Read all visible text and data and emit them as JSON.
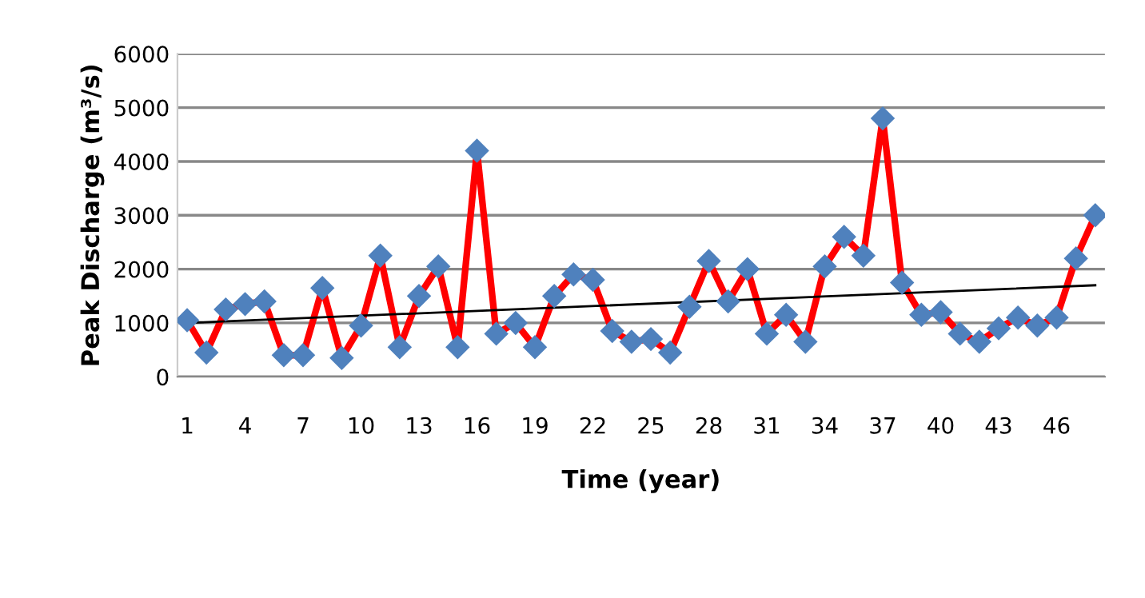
{
  "chart_data": {
    "type": "line",
    "xlabel": "Time (year)",
    "ylabel": "Peak Discharge (m³/s)",
    "categories": [
      "1",
      null,
      null,
      "4",
      null,
      null,
      "7",
      null,
      null,
      "10",
      null,
      null,
      "13",
      null,
      null,
      "16",
      null,
      null,
      "19",
      null,
      null,
      "22",
      null,
      null,
      "25",
      null,
      null,
      "28",
      null,
      null,
      "31",
      null,
      null,
      "34",
      null,
      null,
      "37",
      null,
      null,
      "40",
      null,
      null,
      "43",
      null,
      null,
      "46",
      null,
      null
    ],
    "series": [
      {
        "color": "#ff0000",
        "marker": "diamond",
        "colors": [
          "#4f81bd",
          "#4f81bd",
          "#4f81bd",
          "#4f81bd",
          "#4f81bd",
          "#4f81bd",
          "#4f81bd",
          "#4f81bd",
          "#4f81bd",
          "#4f81bd",
          "#4f81bd",
          "#4f81bd",
          "#4f81bd",
          "#4f81bd",
          "#4f81bd",
          "#4f81bd",
          "#4f81bd",
          "#4f81bd",
          "#4f81bd",
          "#4f81bd",
          "#4f81bd",
          "#4f81bd",
          "#4f81bd",
          "#4f81bd",
          "#4f81bd",
          "#4f81bd",
          "#4f81bd",
          "#4f81bd",
          "#4f81bd",
          "#4f81bd",
          "#4f81bd",
          "#4f81bd",
          "#4f81bd",
          "#4f81bd",
          "#4f81bd",
          "#4f81bd",
          "#4f81bd",
          "#4f81bd",
          "#4f81bd",
          "#4f81bd",
          "#4f81bd",
          "#4f81bd",
          "#4f81bd",
          "#4f81bd",
          "#4f81bd",
          "#4f81bd",
          "#4f81bd",
          "#4f81bd"
        ],
        "values": [
          1050,
          450,
          1250,
          1350,
          1400,
          400,
          400,
          1650,
          350,
          950,
          2250,
          550,
          1500,
          2050,
          550,
          4200,
          800,
          1000,
          550,
          1500,
          1900,
          1800,
          850,
          650,
          700,
          450,
          1300,
          2150,
          1400,
          2000,
          800,
          1150,
          650,
          2050,
          2600,
          2250,
          4800,
          1750,
          1150,
          1200,
          800,
          650,
          900,
          1100,
          950,
          1100,
          2200,
          3000
        ]
      },
      {
        "color": "#000000",
        "marker": "none",
        "values": [
          1000,
          null,
          null,
          null,
          null,
          null,
          null,
          null,
          null,
          null,
          null,
          null,
          null,
          null,
          null,
          null,
          null,
          null,
          null,
          null,
          null,
          null,
          null,
          null,
          null,
          null,
          null,
          null,
          null,
          null,
          null,
          null,
          null,
          null,
          null,
          null,
          null,
          null,
          null,
          null,
          null,
          null,
          null,
          null,
          null,
          null,
          null,
          1700
        ]
      }
    ],
    "ylim": [
      0,
      6000
    ],
    "yticks": [
      0,
      1000,
      2000,
      3000,
      4000,
      5000,
      6000
    ],
    "grid": "y",
    "legend": false
  }
}
